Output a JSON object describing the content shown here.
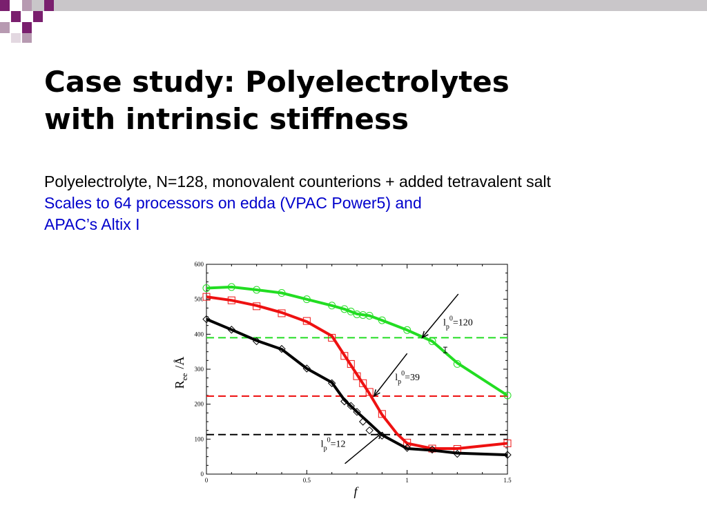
{
  "slide": {
    "title_line1": "Case study: Polyelectrolytes",
    "title_line2": "with intrinsic stiffness",
    "line1": "Polyelectrolyte, N=128, monovalent counterions + added tetravalent salt",
    "line2": "Scales to 64 processors on edda (VPAC Power5) and",
    "line3": "APAC’s Altix I"
  },
  "colors": {
    "accent_purple": "#7a1f6e",
    "accent_gray": "#c9c6c9",
    "link_blue": "#0000cc",
    "green": "#22dd22",
    "red": "#ee1111",
    "black": "#000000"
  },
  "chart_data": {
    "type": "line",
    "xlabel": "f",
    "ylabel_main": "R",
    "ylabel_sub": "ee",
    "ylabel_unit": "/Å",
    "xlim": [
      0,
      1.5
    ],
    "ylim": [
      0,
      600
    ],
    "xticks": [
      "0",
      "0.5",
      "1",
      "1.5"
    ],
    "yticks": [
      "0",
      "100",
      "200",
      "300",
      "400",
      "500",
      "600"
    ],
    "series": [
      {
        "color": "#22dd22",
        "marker": "circle",
        "points": [
          [
            0,
            532
          ],
          [
            0.125,
            535
          ],
          [
            0.25,
            527
          ],
          [
            0.375,
            518
          ],
          [
            0.5,
            500
          ],
          [
            0.625,
            482
          ],
          [
            0.6875,
            472
          ],
          [
            0.72,
            465
          ],
          [
            0.75,
            457
          ],
          [
            0.78,
            455
          ],
          [
            0.8125,
            453
          ],
          [
            0.875,
            440
          ],
          [
            1.0,
            412
          ],
          [
            1.125,
            380
          ],
          [
            1.25,
            315
          ],
          [
            1.5,
            225
          ]
        ],
        "line": [
          [
            0,
            532
          ],
          [
            0.125,
            535
          ],
          [
            0.25,
            527
          ],
          [
            0.375,
            518
          ],
          [
            0.5,
            500
          ],
          [
            0.625,
            482
          ],
          [
            0.6875,
            472
          ],
          [
            0.75,
            458
          ],
          [
            0.8125,
            453
          ],
          [
            0.875,
            440
          ],
          [
            1.0,
            412
          ],
          [
            1.125,
            380
          ],
          [
            1.25,
            318
          ],
          [
            1.5,
            225
          ]
        ],
        "error_bar": {
          "x": 1.19,
          "y": 355,
          "err": 8
        }
      },
      {
        "color": "#ee1111",
        "marker": "square",
        "points": [
          [
            0,
            507
          ],
          [
            0.125,
            497
          ],
          [
            0.25,
            480
          ],
          [
            0.375,
            460
          ],
          [
            0.5,
            438
          ],
          [
            0.625,
            390
          ],
          [
            0.6875,
            338
          ],
          [
            0.72,
            315
          ],
          [
            0.75,
            280
          ],
          [
            0.78,
            260
          ],
          [
            0.8125,
            235
          ],
          [
            0.875,
            172
          ],
          [
            1.0,
            90
          ],
          [
            1.125,
            73
          ],
          [
            1.25,
            72
          ],
          [
            1.5,
            88
          ]
        ],
        "line": [
          [
            0,
            507
          ],
          [
            0.125,
            497
          ],
          [
            0.25,
            482
          ],
          [
            0.375,
            462
          ],
          [
            0.5,
            436
          ],
          [
            0.625,
            395
          ],
          [
            0.6875,
            340
          ],
          [
            0.75,
            285
          ],
          [
            0.8125,
            230
          ],
          [
            0.875,
            170
          ],
          [
            0.95,
            115
          ],
          [
            1.0,
            88
          ],
          [
            1.125,
            73
          ],
          [
            1.25,
            73
          ],
          [
            1.5,
            88
          ]
        ]
      },
      {
        "color": "#000000",
        "marker": "diamond",
        "points": [
          [
            0,
            443
          ],
          [
            0.125,
            413
          ],
          [
            0.25,
            380
          ],
          [
            0.375,
            358
          ],
          [
            0.5,
            302
          ],
          [
            0.625,
            260
          ],
          [
            0.6875,
            208
          ],
          [
            0.72,
            195
          ],
          [
            0.75,
            178
          ],
          [
            0.78,
            150
          ],
          [
            0.8125,
            125
          ],
          [
            0.875,
            110
          ],
          [
            1.0,
            75
          ],
          [
            1.125,
            70
          ],
          [
            1.25,
            58
          ],
          [
            1.5,
            55
          ]
        ],
        "line": [
          [
            0,
            443
          ],
          [
            0.125,
            413
          ],
          [
            0.25,
            382
          ],
          [
            0.375,
            357
          ],
          [
            0.5,
            302
          ],
          [
            0.625,
            262
          ],
          [
            0.6875,
            212
          ],
          [
            0.75,
            178
          ],
          [
            0.8125,
            145
          ],
          [
            0.875,
            112
          ],
          [
            1.0,
            73
          ],
          [
            1.125,
            68
          ],
          [
            1.25,
            60
          ],
          [
            1.5,
            55
          ]
        ]
      }
    ],
    "reference_lines": [
      {
        "y": 390,
        "color": "#22dd22",
        "label_lp": "l",
        "label_sub": "p",
        "label_sup": "0",
        "label_val": "=120"
      },
      {
        "y": 223,
        "color": "#ee1111",
        "label_lp": "l",
        "label_sub": "p",
        "label_sup": "0",
        "label_val": "=39"
      },
      {
        "y": 113,
        "color": "#000000",
        "label_lp": "l",
        "label_sub": "p",
        "label_sup": "0",
        "label_val": "=12"
      }
    ]
  }
}
